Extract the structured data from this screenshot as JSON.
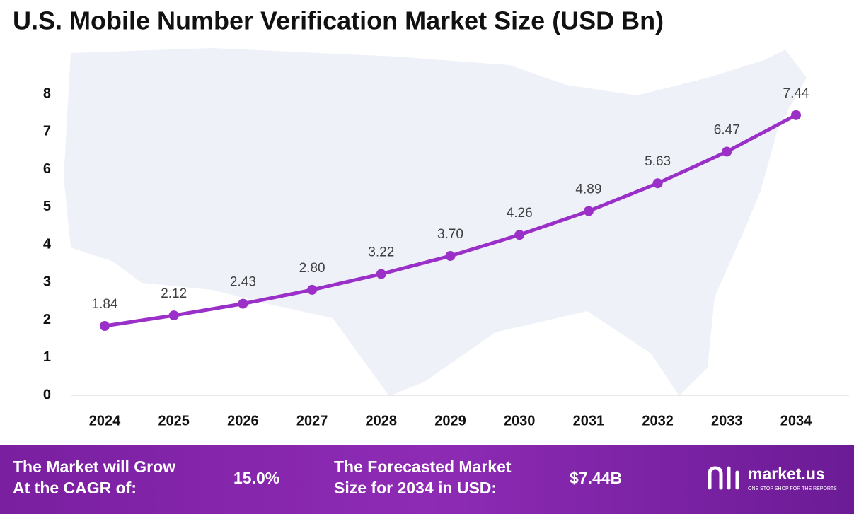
{
  "chart_data": {
    "type": "line",
    "title": "U.S. Mobile Number Verification Market Size (USD Bn)",
    "categories": [
      "2024",
      "2025",
      "2026",
      "2027",
      "2028",
      "2029",
      "2030",
      "2031",
      "2032",
      "2033",
      "2034"
    ],
    "series": [
      {
        "color": "#9b30c9",
        "values": [
          1.84,
          2.12,
          2.43,
          2.8,
          3.22,
          3.7,
          4.26,
          4.89,
          5.63,
          6.47,
          7.44
        ],
        "value_labels": [
          "1.84",
          "2.12",
          "2.43",
          "2.80",
          "3.22",
          "3.70",
          "4.26",
          "4.89",
          "5.63",
          "6.47",
          "7.44"
        ]
      }
    ],
    "ylim": [
      0,
      8
    ],
    "yticks": [
      0,
      1,
      2,
      3,
      4,
      5,
      6,
      7,
      8
    ],
    "grid": false
  },
  "footer": {
    "cagr_text": [
      "The Market will Grow",
      "At the CAGR of:"
    ],
    "cagr_value": "15.0%",
    "forecast_text": [
      "The Forecasted Market",
      "Size for 2034 in USD:"
    ],
    "forecast_value": "$7.44B",
    "brand": "market.us",
    "tagline": "ONE STOP SHOP FOR THE REPORTS"
  }
}
